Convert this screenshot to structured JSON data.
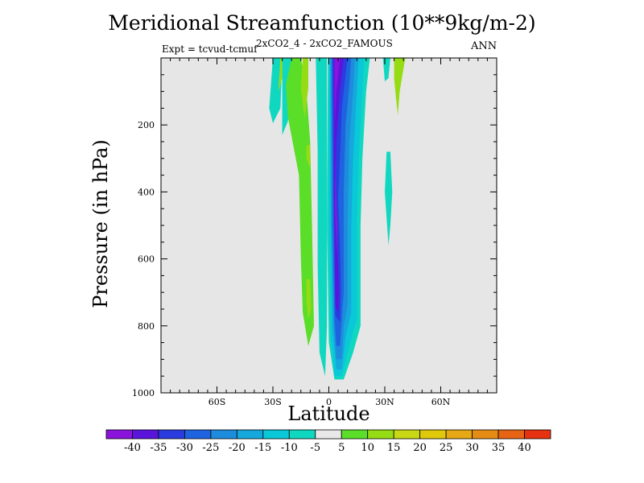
{
  "title": "Meridional Streamfunction (10**9kg/m-2)",
  "subtitle": "2xCO2_4 - 2xCO2_FAMOUS",
  "left_label": "Expt = tcvud-tcmuf",
  "right_label": "ANN",
  "colors": {
    "background": "#e6e6e6",
    "zero_band": "#e8e8e8"
  },
  "chart_data": {
    "type": "contour",
    "title": "Meridional Streamfunction (10**9kg/m-2)",
    "xlabel": "Latitude",
    "ylabel": "Pressure (in hPa)",
    "xlim": [
      -90,
      90
    ],
    "ylim": [
      1000,
      0
    ],
    "x_ticks": [
      {
        "value": -60,
        "label": "60S"
      },
      {
        "value": -30,
        "label": "30S"
      },
      {
        "value": 0,
        "label": "0"
      },
      {
        "value": 30,
        "label": "30N"
      },
      {
        "value": 60,
        "label": "60N"
      }
    ],
    "y_ticks": [
      {
        "value": 200,
        "label": "200"
      },
      {
        "value": 400,
        "label": "400"
      },
      {
        "value": 600,
        "label": "600"
      },
      {
        "value": 800,
        "label": "800"
      },
      {
        "value": 1000,
        "label": "1000"
      }
    ],
    "colorbar": {
      "levels": [
        -40,
        -35,
        -30,
        -25,
        -20,
        -15,
        -10,
        -5,
        5,
        10,
        15,
        20,
        25,
        30,
        35,
        40
      ],
      "labels": [
        "-40",
        "-35",
        "-30",
        "-25",
        "-20",
        "-15",
        "-10",
        "-5",
        "5",
        "10",
        "15",
        "20",
        "25",
        "30",
        "35",
        "40"
      ],
      "colors": [
        "#8a14dc",
        "#5a14dc",
        "#2a3ce0",
        "#1e64e0",
        "#1e8cdc",
        "#14a8dc",
        "#0ac8d8",
        "#10d8c0",
        "#e8e8e8",
        "#5ade28",
        "#96dc14",
        "#c8d814",
        "#e0c80a",
        "#e6a814",
        "#e68c14",
        "#e66414",
        "#e63210"
      ]
    },
    "regions": [
      {
        "level": -5,
        "points": [
          [
            -30,
            0
          ],
          [
            -25,
            0
          ],
          [
            -26,
            150
          ],
          [
            -30,
            195
          ],
          [
            -32,
            150
          ]
        ]
      },
      {
        "level": 10,
        "points": [
          [
            -26,
            0
          ],
          [
            -24,
            0
          ],
          [
            -25,
            60
          ],
          [
            -27,
            100
          ]
        ]
      },
      {
        "level": -5,
        "points": [
          [
            -25,
            0
          ],
          [
            -17,
            0
          ],
          [
            -19,
            80
          ],
          [
            -22,
            190
          ],
          [
            -25,
            230
          ]
        ]
      },
      {
        "level": 5,
        "points": [
          [
            -20,
            0
          ],
          [
            -15,
            0
          ],
          [
            -12,
            100
          ],
          [
            -10,
            250
          ],
          [
            -9,
            500
          ],
          [
            -8,
            800
          ],
          [
            -11,
            860
          ],
          [
            -14,
            760
          ],
          [
            -15,
            600
          ],
          [
            -16,
            350
          ],
          [
            -22,
            175
          ],
          [
            -23,
            80
          ]
        ]
      },
      {
        "level": 10,
        "points": [
          [
            -14,
            0
          ],
          [
            -11,
            0
          ],
          [
            -11,
            90
          ],
          [
            -13,
            180
          ],
          [
            -15,
            90
          ]
        ]
      },
      {
        "level": -5,
        "points": [
          [
            -7,
            0
          ],
          [
            -1,
            0
          ],
          [
            -1,
            200
          ],
          [
            -1,
            600
          ],
          [
            -1,
            800
          ],
          [
            -2,
            950
          ],
          [
            -5,
            880
          ],
          [
            -6,
            620
          ],
          [
            -6,
            280
          ]
        ]
      },
      {
        "level": 10,
        "points": [
          [
            -12,
            260
          ],
          [
            -10,
            260
          ],
          [
            -10,
            330
          ],
          [
            -12,
            300
          ]
        ]
      },
      {
        "level": 10,
        "points": [
          [
            -12,
            660
          ],
          [
            -10,
            660
          ],
          [
            -9.5,
            750
          ],
          [
            -11,
            780
          ],
          [
            -12,
            730
          ]
        ]
      },
      {
        "level": -5,
        "points": [
          [
            -0.5,
            0
          ],
          [
            22,
            0
          ],
          [
            20,
            100
          ],
          [
            18,
            300
          ],
          [
            17,
            500
          ],
          [
            17,
            800
          ],
          [
            13,
            880
          ],
          [
            8,
            960
          ],
          [
            3,
            960
          ],
          [
            0,
            850
          ],
          [
            -1,
            500
          ]
        ]
      },
      {
        "level": -10,
        "points": [
          [
            0,
            0
          ],
          [
            19,
            0
          ],
          [
            18,
            100
          ],
          [
            16,
            300
          ],
          [
            15,
            500
          ],
          [
            15,
            780
          ],
          [
            11,
            860
          ],
          [
            7,
            950
          ],
          [
            3,
            950
          ],
          [
            1,
            830
          ],
          [
            0,
            500
          ]
        ]
      },
      {
        "level": -15,
        "points": [
          [
            0.5,
            0
          ],
          [
            16,
            0
          ],
          [
            15,
            100
          ],
          [
            13,
            300
          ],
          [
            12,
            500
          ],
          [
            12,
            760
          ],
          [
            9,
            830
          ],
          [
            7,
            930
          ],
          [
            4,
            930
          ],
          [
            2,
            810
          ],
          [
            1,
            500
          ]
        ]
      },
      {
        "level": -20,
        "points": [
          [
            1,
            0
          ],
          [
            14,
            0
          ],
          [
            13,
            100
          ],
          [
            11,
            250
          ],
          [
            10,
            500
          ],
          [
            10,
            740
          ],
          [
            8,
            800
          ],
          [
            7,
            900
          ],
          [
            4,
            900
          ],
          [
            2.5,
            790
          ],
          [
            1.5,
            500
          ]
        ]
      },
      {
        "level": -25,
        "points": [
          [
            1.5,
            0
          ],
          [
            12,
            0
          ],
          [
            11,
            80
          ],
          [
            9,
            200
          ],
          [
            8,
            400
          ],
          [
            8,
            700
          ],
          [
            7,
            780
          ],
          [
            6,
            860
          ],
          [
            4,
            860
          ],
          [
            3,
            780
          ],
          [
            2,
            500
          ]
        ]
      },
      {
        "level": -30,
        "points": [
          [
            2,
            0
          ],
          [
            10,
            0
          ],
          [
            9,
            50
          ],
          [
            7,
            150
          ],
          [
            6,
            300
          ],
          [
            5,
            420
          ],
          [
            6,
            560
          ],
          [
            6.5,
            700
          ],
          [
            6,
            790
          ],
          [
            3.5,
            770
          ],
          [
            3,
            600
          ],
          [
            2.5,
            400
          ]
        ]
      },
      {
        "level": -35,
        "points": [
          [
            2.5,
            0
          ],
          [
            8,
            0
          ],
          [
            6,
            100
          ],
          [
            4,
            250
          ],
          [
            3.5,
            400
          ],
          [
            4.5,
            550
          ],
          [
            5.5,
            700
          ],
          [
            5,
            760
          ],
          [
            3.5,
            740
          ],
          [
            3,
            500
          ]
        ]
      },
      {
        "level": -40,
        "points": [
          [
            3,
            0
          ],
          [
            6,
            0
          ],
          [
            4,
            100
          ],
          [
            3.2,
            200
          ],
          [
            3.5,
            350
          ],
          [
            4.5,
            500
          ],
          [
            4,
            600
          ],
          [
            3.3,
            450
          ]
        ]
      },
      {
        "level": -5,
        "points": [
          [
            29,
            0
          ],
          [
            33,
            0
          ],
          [
            32,
            60
          ],
          [
            30,
            70
          ]
        ]
      },
      {
        "level": 10,
        "points": [
          [
            35,
            0
          ],
          [
            41,
            0
          ],
          [
            38,
            100
          ],
          [
            37,
            170
          ],
          [
            36,
            120
          ],
          [
            35,
            60
          ]
        ]
      },
      {
        "level": -5,
        "points": [
          [
            31,
            280
          ],
          [
            33,
            280
          ],
          [
            34,
            400
          ],
          [
            33,
            500
          ],
          [
            32,
            560
          ],
          [
            31,
            480
          ],
          [
            30,
            400
          ]
        ]
      }
    ]
  }
}
